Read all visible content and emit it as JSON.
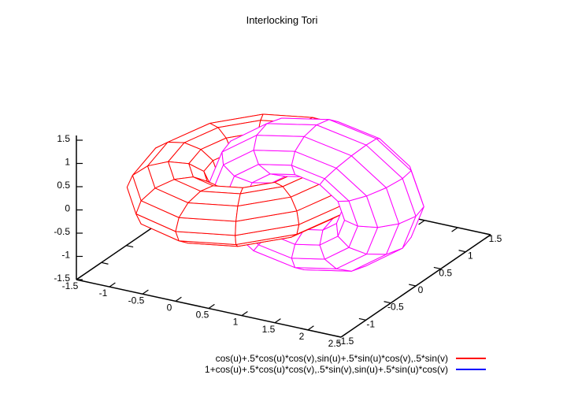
{
  "chart_data": {
    "type": "surface3d",
    "title": "Interlocking Tori",
    "grid": false,
    "legend_position": "bottom-center",
    "view": {
      "rot_x": 60,
      "rot_z": 30
    },
    "mesh": {
      "step_degrees": 30,
      "u_range_degrees": [
        -180,
        180
      ],
      "v_range_degrees": [
        -180,
        180
      ]
    },
    "axes": {
      "x": {
        "range": [
          -1.5,
          2.5
        ],
        "tick_labels": [
          "-1.5",
          "-1",
          "-0.5",
          "0",
          "0.5",
          "1",
          "1.5",
          "2",
          "2.5"
        ]
      },
      "y": {
        "range": [
          -1.5,
          1.5
        ],
        "tick_labels": [
          "-1.5",
          "-1",
          "-0.5",
          "0",
          "0.5",
          "1",
          "1.5"
        ]
      },
      "z": {
        "range": [
          -1.5,
          1.5
        ],
        "tick_labels": [
          "-1.5",
          "-1",
          "-0.5",
          "0",
          "0.5",
          "1",
          "1.5"
        ]
      }
    },
    "series": [
      {
        "formula": "cos(u)+.5*cos(u)*cos(v),sin(u)+.5*sin(u)*cos(v),.5*sin(v)",
        "shape": "torus",
        "center": [
          0,
          0,
          0
        ],
        "R": 1,
        "r": 0.5,
        "tube_axis": "z",
        "mesh_color": "#ff0000",
        "key_color": "#ff0000"
      },
      {
        "formula": "1+cos(u)+.5*cos(u)*cos(v),.5*sin(v),sin(u)+.5*sin(u)*cos(v)",
        "shape": "torus",
        "center": [
          1,
          0,
          0
        ],
        "R": 1,
        "r": 0.5,
        "tube_axis": "y",
        "mesh_color": "#ff00ff",
        "key_color": "#0000ff"
      }
    ],
    "colors": {
      "axis": "#000000",
      "background": "#ffffff"
    }
  }
}
